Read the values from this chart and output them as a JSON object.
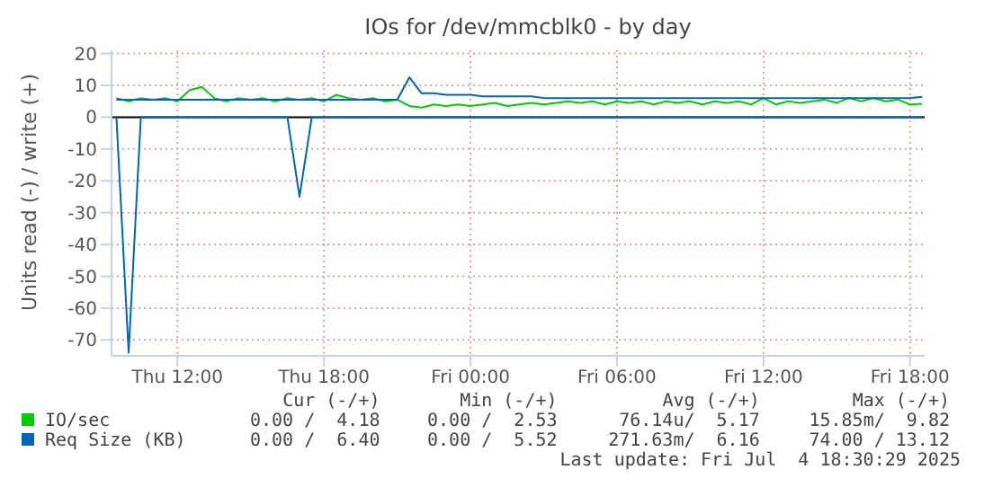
{
  "chart_data": {
    "type": "line",
    "title": "IOs for /dev/mmcblk0 - by day",
    "ylabel": "Units read (-) / write (+)",
    "x": [
      "2025-07-03T09:30",
      "2025-07-03T10:00",
      "2025-07-03T10:30",
      "2025-07-03T11:00",
      "2025-07-03T11:30",
      "2025-07-03T12:00",
      "2025-07-03T12:30",
      "2025-07-03T13:00",
      "2025-07-03T13:30",
      "2025-07-03T14:00",
      "2025-07-03T14:30",
      "2025-07-03T15:00",
      "2025-07-03T15:30",
      "2025-07-03T16:00",
      "2025-07-03T16:30",
      "2025-07-03T17:00",
      "2025-07-03T17:30",
      "2025-07-03T18:00",
      "2025-07-03T18:30",
      "2025-07-03T19:00",
      "2025-07-03T19:30",
      "2025-07-03T20:00",
      "2025-07-03T20:30",
      "2025-07-03T21:00",
      "2025-07-03T21:30",
      "2025-07-03T22:00",
      "2025-07-03T22:30",
      "2025-07-03T23:00",
      "2025-07-03T23:30",
      "2025-07-04T00:00",
      "2025-07-04T00:30",
      "2025-07-04T01:00",
      "2025-07-04T01:30",
      "2025-07-04T02:00",
      "2025-07-04T02:30",
      "2025-07-04T03:00",
      "2025-07-04T03:30",
      "2025-07-04T04:00",
      "2025-07-04T04:30",
      "2025-07-04T05:00",
      "2025-07-04T05:30",
      "2025-07-04T06:00",
      "2025-07-04T06:30",
      "2025-07-04T07:00",
      "2025-07-04T07:30",
      "2025-07-04T08:00",
      "2025-07-04T08:30",
      "2025-07-04T09:00",
      "2025-07-04T09:30",
      "2025-07-04T10:00",
      "2025-07-04T10:30",
      "2025-07-04T11:00",
      "2025-07-04T11:30",
      "2025-07-04T12:00",
      "2025-07-04T12:30",
      "2025-07-04T13:00",
      "2025-07-04T13:30",
      "2025-07-04T14:00",
      "2025-07-04T14:30",
      "2025-07-04T15:00",
      "2025-07-04T15:30",
      "2025-07-04T16:00",
      "2025-07-04T16:30",
      "2025-07-04T17:00",
      "2025-07-04T17:30",
      "2025-07-04T18:00",
      "2025-07-04T18:30"
    ],
    "series": [
      {
        "name": "IO/sec",
        "color": "#00cc00",
        "values": [
          6,
          5,
          6,
          5.5,
          6,
          5,
          8.5,
          9.5,
          6,
          5,
          6,
          5.5,
          6,
          5,
          6,
          5.5,
          6,
          5,
          7,
          6,
          5.5,
          6,
          5,
          5.5,
          3.5,
          3,
          4,
          3.5,
          4,
          3.5,
          4,
          4.5,
          3.5,
          4,
          4.5,
          4,
          4.5,
          5,
          4.5,
          5,
          4,
          5,
          4.5,
          5,
          4,
          5,
          4.5,
          5,
          4,
          5,
          4.5,
          5,
          4,
          6,
          4,
          5,
          4.5,
          5,
          5.5,
          4.5,
          6,
          5,
          6,
          5,
          5.5,
          4,
          4.2
        ]
      },
      {
        "name": "Req Size (KB)",
        "color": "#0066b3",
        "values": [
          5.5,
          5.5,
          5.5,
          5.5,
          5.5,
          5.5,
          5.5,
          5.5,
          5.5,
          5.5,
          5.5,
          5.5,
          5.5,
          5.5,
          5.5,
          5.5,
          5.5,
          5.5,
          5.5,
          5.5,
          5.5,
          5.5,
          5.5,
          5.5,
          12.5,
          7.5,
          7.5,
          7,
          7,
          7,
          6.5,
          6.5,
          6.5,
          6.5,
          6.5,
          6,
          6,
          6,
          6,
          6,
          6,
          6,
          6,
          6,
          6,
          6,
          6,
          6,
          6,
          6,
          6,
          6,
          6,
          6,
          6,
          6,
          6,
          6,
          6,
          6,
          6,
          6,
          6,
          6,
          6,
          6,
          6.4
        ]
      },
      {
        "color": "#0066b3",
        "values": [
          0,
          -74,
          0,
          0,
          0,
          0,
          0,
          0,
          0,
          0,
          0,
          0,
          0,
          0,
          0,
          -25,
          0,
          0,
          0,
          0,
          0,
          0,
          0,
          0,
          0,
          0,
          0,
          0,
          0,
          0,
          0,
          0,
          0,
          0,
          0,
          0,
          0,
          0,
          0,
          0,
          0,
          0,
          0,
          0,
          0,
          0,
          0,
          0,
          0,
          0,
          0,
          0,
          0,
          0,
          0,
          0,
          0,
          0,
          0,
          0,
          0,
          0,
          0,
          0,
          0,
          0,
          0
        ]
      }
    ],
    "xlim": [
      "2025-07-03T09:18",
      "2025-07-04T18:36"
    ],
    "xticks": [
      {
        "value": "2025-07-03T12:00",
        "label": "Thu 12:00"
      },
      {
        "value": "2025-07-03T18:00",
        "label": "Thu 18:00"
      },
      {
        "value": "2025-07-04T00:00",
        "label": "Fri 00:00"
      },
      {
        "value": "2025-07-04T06:00",
        "label": "Fri 06:00"
      },
      {
        "value": "2025-07-04T12:00",
        "label": "Fri 12:00"
      },
      {
        "value": "2025-07-04T18:00",
        "label": "Fri 18:00"
      }
    ],
    "ylim": [
      -75,
      21
    ],
    "yticks": [
      -70,
      -60,
      -50,
      -40,
      -30,
      -20,
      -10,
      0,
      10,
      20
    ],
    "ref_lines": [
      {
        "axis": "y",
        "value": 0,
        "color": "#000000"
      }
    ],
    "grid": true,
    "legend": "bottom",
    "marker": "none",
    "line_style": "solid",
    "annotations": [
      "Cur (-/+)",
      "Min (-/+)",
      "Avg (-/+)",
      "Max (-/+)",
      "0.00 /  4.18",
      "0.00 /  2.53",
      "76.14u/  5.17",
      "15.85m/  9.82",
      "0.00 /  6.40",
      "0.00 /  5.52",
      "271.63m/  6.16",
      "74.00 / 13.12",
      "Last update: Fri Jul  4 18:30:29 2025"
    ]
  }
}
